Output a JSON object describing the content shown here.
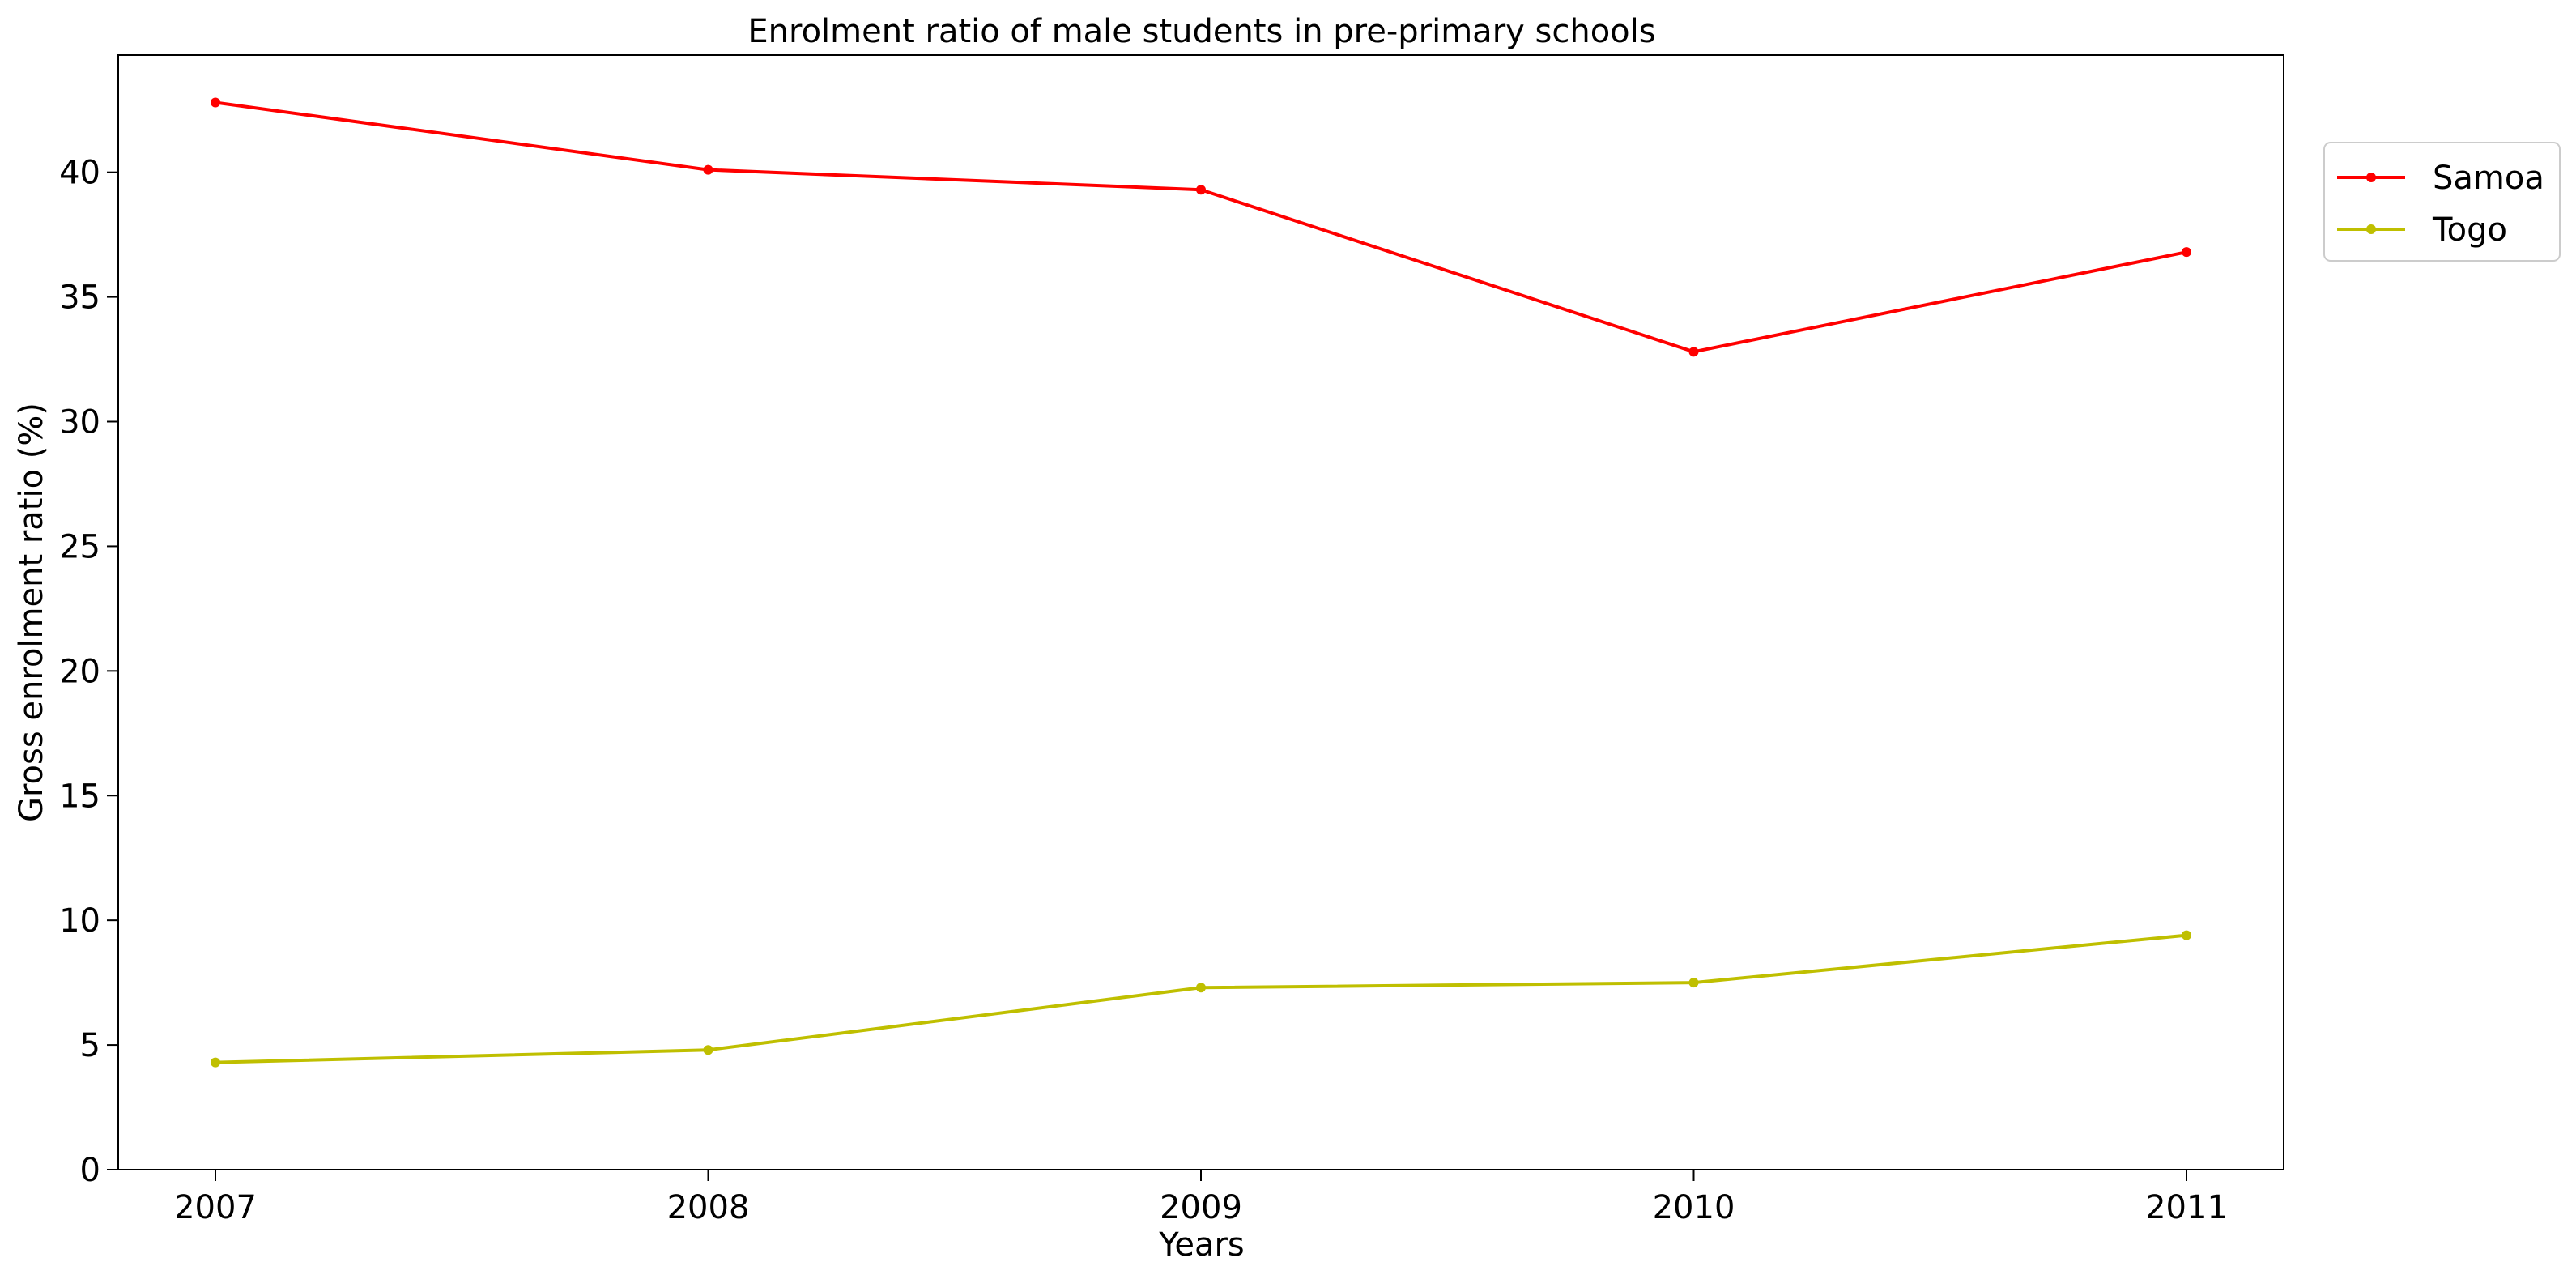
{
  "chart_data": {
    "type": "line",
    "title": "Enrolment ratio of male students in pre-primary schools",
    "xlabel": "Years",
    "ylabel": "Gross enrolment ratio (%)",
    "categories": [
      "2007",
      "2008",
      "2009",
      "2010",
      "2011"
    ],
    "ylim": [
      0,
      44.7
    ],
    "yticks": [
      0,
      5,
      10,
      15,
      20,
      25,
      30,
      35,
      40
    ],
    "grid": false,
    "legend_position": "top-right (outside plot)",
    "series": [
      {
        "name": "Samoa",
        "color": "#ff0000",
        "values": [
          42.8,
          40.1,
          39.3,
          32.8,
          36.8
        ]
      },
      {
        "name": "Togo",
        "color": "#bfbf00",
        "values": [
          4.3,
          4.8,
          7.3,
          7.5,
          9.4
        ]
      }
    ]
  }
}
